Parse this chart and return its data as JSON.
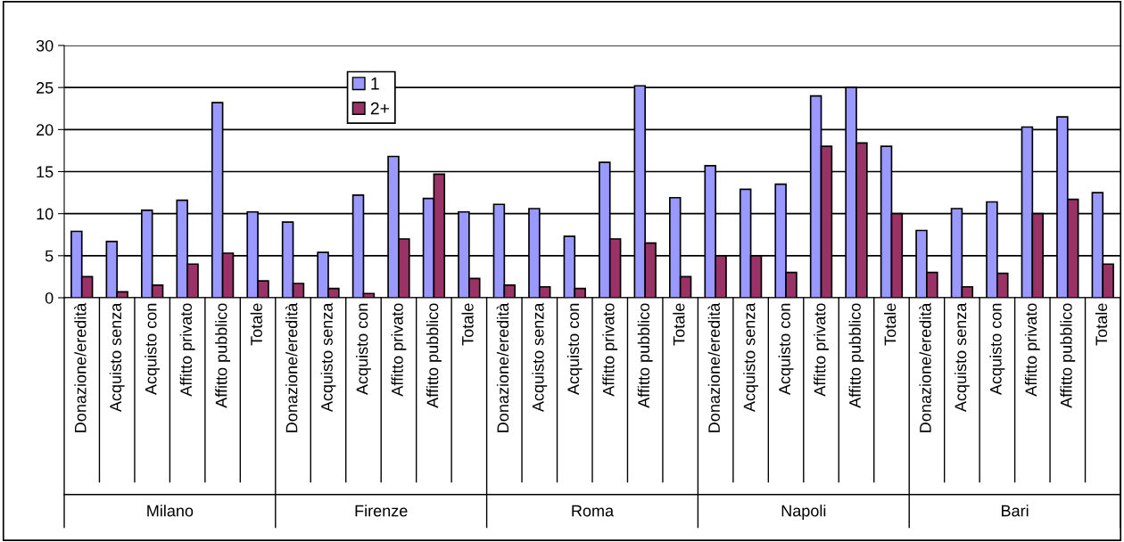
{
  "chart_data": {
    "type": "bar",
    "categories": [
      "Donazione/eredità",
      "Acquisto senza",
      "Acquisto con",
      "Affitto privato",
      "Affitto pubblico",
      "Totale",
      "Donazione/eredità",
      "Acquisto senza",
      "Acquisto con",
      "Affitto privato",
      "Affitto pubblico",
      "Totale",
      "Donazione/eredità",
      "Acquisto senza",
      "Acquisto con",
      "Affitto privato",
      "Affitto pubblico",
      "Totale",
      "Donazione/eredità",
      "Acquisto senza",
      "Acquisto con",
      "Affitto privato",
      "Affitto pubblico",
      "Totale",
      "Donazione/eredità",
      "Acquisto senza",
      "Acquisto con",
      "Affitto privato",
      "Affitto pubblico",
      "Totale"
    ],
    "annotations": [
      "Milano",
      "Firenze",
      "Roma",
      "Napoli",
      "Bari"
    ],
    "series": [
      {
        "name": "1",
        "color": "#9999ff",
        "values": [
          7.9,
          6.7,
          10.4,
          11.6,
          23.2,
          10.2,
          9.0,
          5.4,
          12.2,
          16.8,
          11.8,
          10.2,
          11.1,
          10.6,
          7.3,
          16.1,
          25.2,
          11.9,
          15.7,
          12.9,
          13.5,
          24.0,
          25.0,
          18.0,
          8.0,
          10.6,
          11.4,
          20.3,
          21.5,
          12.5
        ]
      },
      {
        "name": "2+",
        "color": "#993366",
        "values": [
          2.5,
          0.7,
          1.5,
          4.0,
          5.3,
          2.0,
          1.7,
          1.1,
          0.5,
          7.0,
          14.7,
          2.3,
          1.5,
          1.3,
          1.1,
          7.0,
          6.5,
          2.5,
          5.0,
          5.0,
          3.0,
          18.0,
          18.4,
          10.0,
          3.0,
          1.3,
          2.9,
          10.0,
          11.7,
          4.0
        ]
      }
    ],
    "ylim": [
      0,
      30
    ],
    "yticks": [
      0,
      5,
      10,
      15,
      20,
      25,
      30
    ],
    "grid": "y",
    "legend": "top left"
  }
}
